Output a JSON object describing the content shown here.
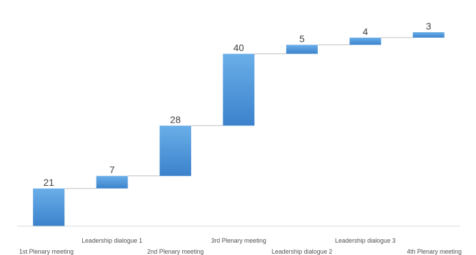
{
  "chart_data": {
    "type": "waterfall",
    "categories": [
      "1st Plenary meeting",
      "Leadership dialogue 1",
      "2nd Plenary meeting",
      "3rd Plenary meeting",
      "Leadership dialogue 2",
      "Leadership dialogue 3",
      "4th Plenary meeting"
    ],
    "values": [
      21,
      7,
      28,
      40,
      5,
      4,
      3
    ],
    "cumulative_end": [
      21,
      28,
      56,
      96,
      101,
      105,
      108
    ],
    "title": "",
    "xlabel": "",
    "ylabel": "",
    "ylim": [
      0,
      110
    ],
    "grid": false,
    "legend": "none",
    "colors": {
      "bar_top": "#6aaee8",
      "bar_bottom": "#3b82cc",
      "connector": "#bfbfbf",
      "axis": "#d9d9d9",
      "value_text": "#404040",
      "category_text": "#505050"
    }
  }
}
